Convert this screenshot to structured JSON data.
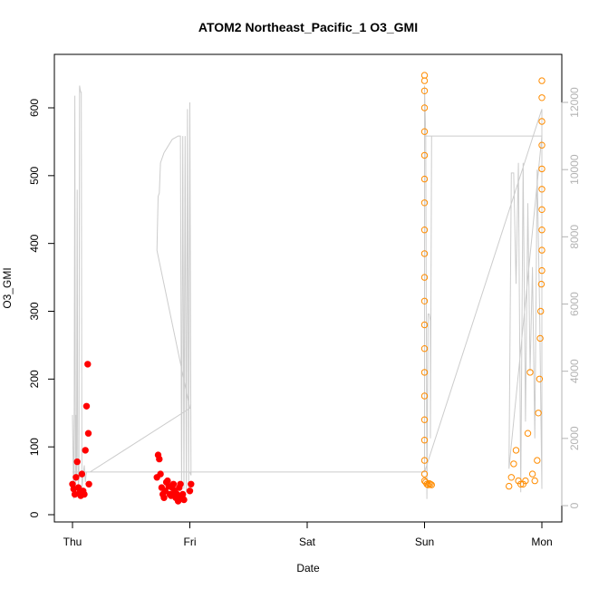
{
  "chart_data": {
    "type": "scatter",
    "title": "ATOM2 Northeast_Pacific_1 O3_GMI",
    "xlabel": "Date",
    "ylabel": "O3_GMI",
    "x_ticks": [
      "Thu",
      "Fri",
      "Sat",
      "Sun",
      "Mon"
    ],
    "xlim_days": [
      0,
      4
    ],
    "ylim": [
      0,
      650
    ],
    "y_ticks": [
      0,
      100,
      200,
      300,
      400,
      500,
      600
    ],
    "right_axis": {
      "label": "",
      "ylim": [
        0,
        12500
      ],
      "ticks": [
        0,
        2000,
        4000,
        6000,
        8000,
        10000,
        12000
      ],
      "color": "#b3b3b3"
    },
    "grid": false,
    "legend": "none",
    "colors": {
      "red_series": "#ff0000",
      "orange_series": "#ff8c00",
      "altitude_line": "#cccccc"
    },
    "series": [
      {
        "marker": "filled-circle",
        "color": "#ff0000",
        "segments": [
          {
            "x": [
              0.0,
              0.01,
              0.02,
              0.03,
              0.04,
              0.05,
              0.06,
              0.07,
              0.08,
              0.09,
              0.1,
              0.11,
              0.12,
              0.13,
              0.135,
              0.14
            ],
            "y": [
              45,
              38,
              30,
              55,
              78,
              40,
              32,
              28,
              60,
              35,
              30,
              95,
              160,
              222,
              120,
              45
            ]
          },
          {
            "x": [
              0.72,
              0.73,
              0.74,
              0.75,
              0.76,
              0.77,
              0.78,
              0.79,
              0.8,
              0.81,
              0.82,
              0.83,
              0.84,
              0.85,
              0.86,
              0.87,
              0.88,
              0.89,
              0.9,
              0.91,
              0.92,
              0.93,
              0.94,
              0.95,
              1.0,
              1.01
            ],
            "y": [
              55,
              88,
              82,
              60,
              40,
              30,
              25,
              35,
              48,
              50,
              42,
              30,
              28,
              40,
              45,
              35,
              25,
              30,
              20,
              40,
              45,
              25,
              30,
              22,
              35,
              45
            ]
          }
        ]
      },
      {
        "marker": "open-circle",
        "color": "#ff8c00",
        "segments": [
          {
            "x": [
              3.0,
              3.0,
              3.0,
              3.0,
              3.0,
              3.0,
              3.0,
              3.0,
              3.0,
              3.0,
              3.0,
              3.0,
              3.0,
              3.0,
              3.0,
              3.0,
              3.0,
              3.0,
              3.0,
              3.0,
              3.0,
              3.01,
              3.02,
              3.03,
              3.04,
              3.05,
              3.06
            ],
            "y": [
              648,
              640,
              625,
              600,
              565,
              530,
              495,
              460,
              420,
              385,
              350,
              315,
              280,
              245,
              210,
              175,
              140,
              110,
              80,
              60,
              50,
              48,
              45,
              44,
              46,
              45,
              44
            ]
          },
          {
            "x": [
              3.72,
              3.74,
              3.76,
              3.78,
              3.8,
              3.82,
              3.84,
              3.86,
              3.88,
              3.9,
              3.92,
              3.94,
              3.96,
              3.97,
              3.98,
              3.985,
              3.99,
              3.995,
              4.0,
              4.0,
              4.0,
              4.0,
              4.0,
              4.0,
              4.0,
              4.0,
              4.0,
              4.0
            ],
            "y": [
              42,
              55,
              75,
              95,
              50,
              45,
              45,
              50,
              120,
              210,
              60,
              50,
              80,
              150,
              200,
              260,
              300,
              340,
              360,
              390,
              420,
              450,
              480,
              510,
              545,
              580,
              615,
              640
            ]
          }
        ]
      }
    ],
    "altitude_line": {
      "color": "#cccccc",
      "x": [
        0.0,
        0.01,
        0.015,
        0.02,
        0.025,
        0.03,
        0.035,
        0.04,
        0.045,
        0.05,
        0.055,
        0.06,
        0.065,
        0.07,
        0.075,
        0.08,
        0.09,
        0.1,
        0.105,
        0.11,
        0.115,
        0.12,
        0.125,
        0.13,
        0.14,
        0.15,
        1.0,
        0.72,
        0.73,
        0.74,
        0.75,
        0.76,
        0.77,
        0.78,
        0.85,
        0.9,
        0.91,
        0.92,
        0.93,
        0.94,
        0.95,
        0.96,
        0.97,
        0.98,
        0.99,
        1.0,
        1.01,
        1.0,
        3.0,
        3.0,
        3.01,
        3.02,
        3.03,
        3.04,
        3.05,
        3.05,
        3.06,
        3.0,
        4.0,
        3.72,
        3.74,
        3.76,
        3.78,
        3.8,
        3.82,
        3.84,
        3.86,
        3.88,
        3.9,
        3.92,
        3.94,
        3.96,
        3.98,
        4.0,
        4.0,
        3.0,
        0.0
      ],
      "y": [
        2700,
        200,
        2700,
        12200,
        500,
        2700,
        800,
        9400,
        1500,
        600,
        800,
        12500,
        12400,
        12300,
        12300,
        500,
        900,
        1200,
        900,
        700,
        900,
        1000,
        1000,
        1000,
        1000,
        1000,
        2900,
        7600,
        9200,
        9300,
        10200,
        10300,
        10400,
        10500,
        10900,
        11000,
        11000,
        11000,
        500,
        11000,
        500,
        11000,
        400,
        11800,
        500,
        12000,
        900,
        1000,
        1000,
        12500,
        11000,
        200,
        5700,
        5700,
        5500,
        2000,
        11000,
        11000,
        11000,
        1100,
        9900,
        9900,
        6600,
        10200,
        400,
        10200,
        2500,
        9000,
        4000,
        7100,
        2000,
        10000,
        6000,
        500,
        11800,
        1000,
        1000
      ],
      "note_y_units": "right axis"
    }
  }
}
